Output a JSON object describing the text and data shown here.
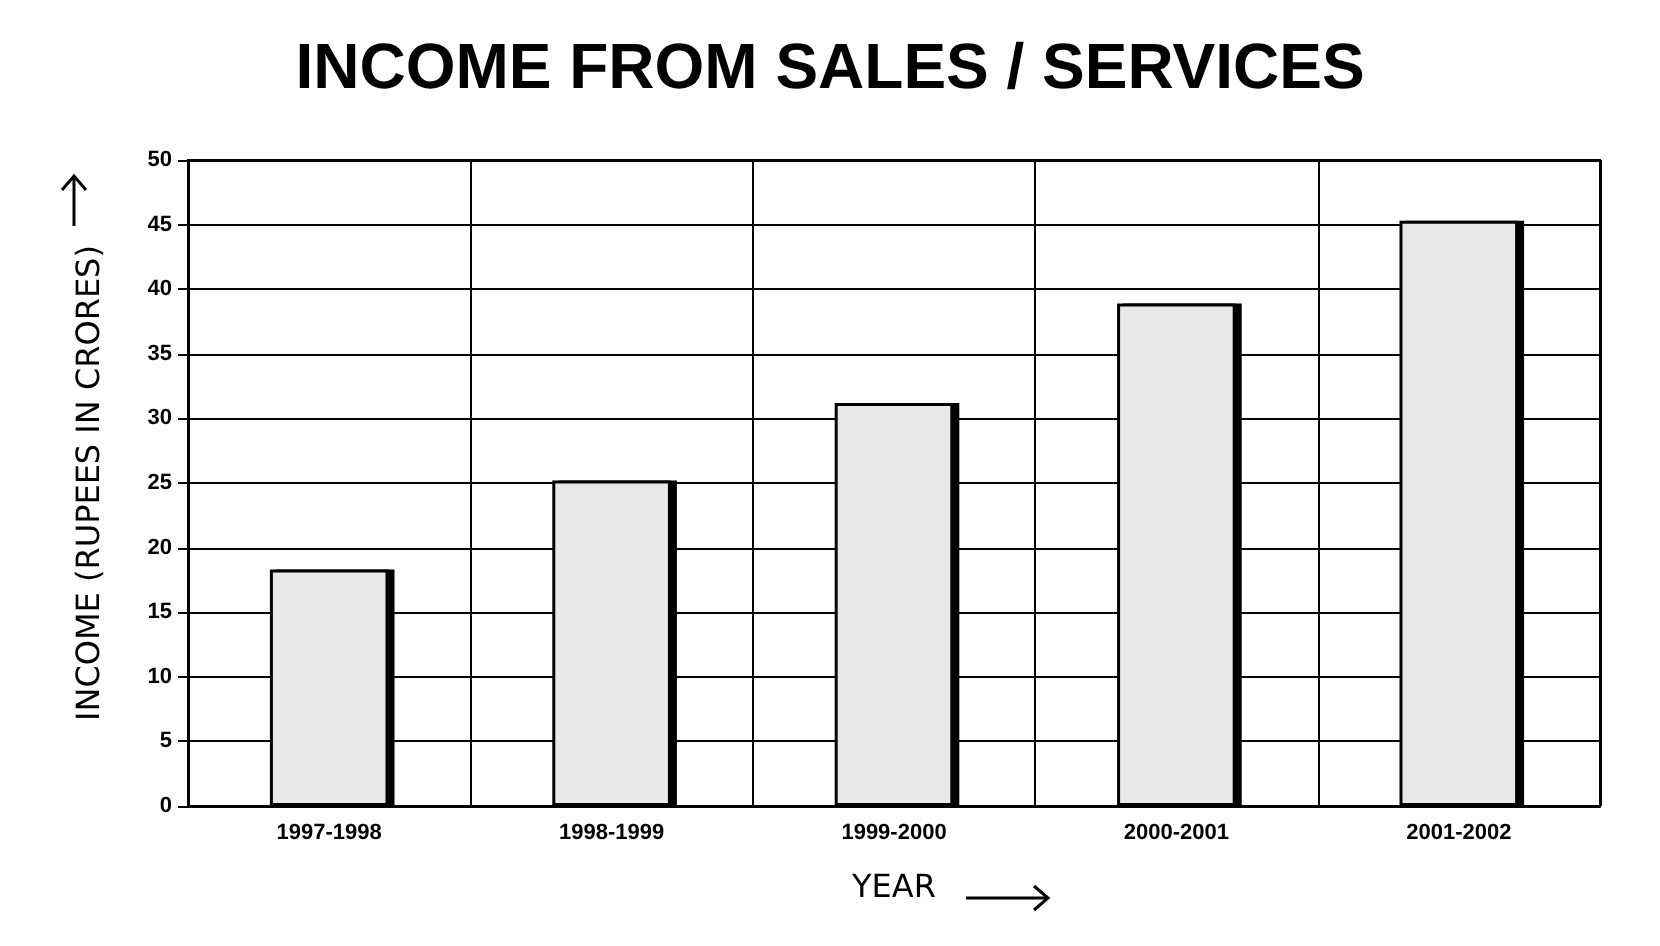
{
  "chart_data": {
    "type": "bar",
    "title": "INCOME FROM SALES / SERVICES",
    "xlabel": "YEAR",
    "ylabel": "INCOME (RUPEES IN CRORES)",
    "categories": [
      "1997-1998",
      "1998-1999",
      "1999-2000",
      "2000-2001",
      "2001-2002"
    ],
    "values": [
      18.3,
      25.2,
      31.2,
      38.9,
      45.3
    ],
    "color": "#e8e8e8",
    "ylim": [
      0,
      50
    ],
    "yticks": [
      0,
      5,
      10,
      15,
      20,
      25,
      30,
      35,
      40,
      45,
      50
    ],
    "grid": true
  }
}
